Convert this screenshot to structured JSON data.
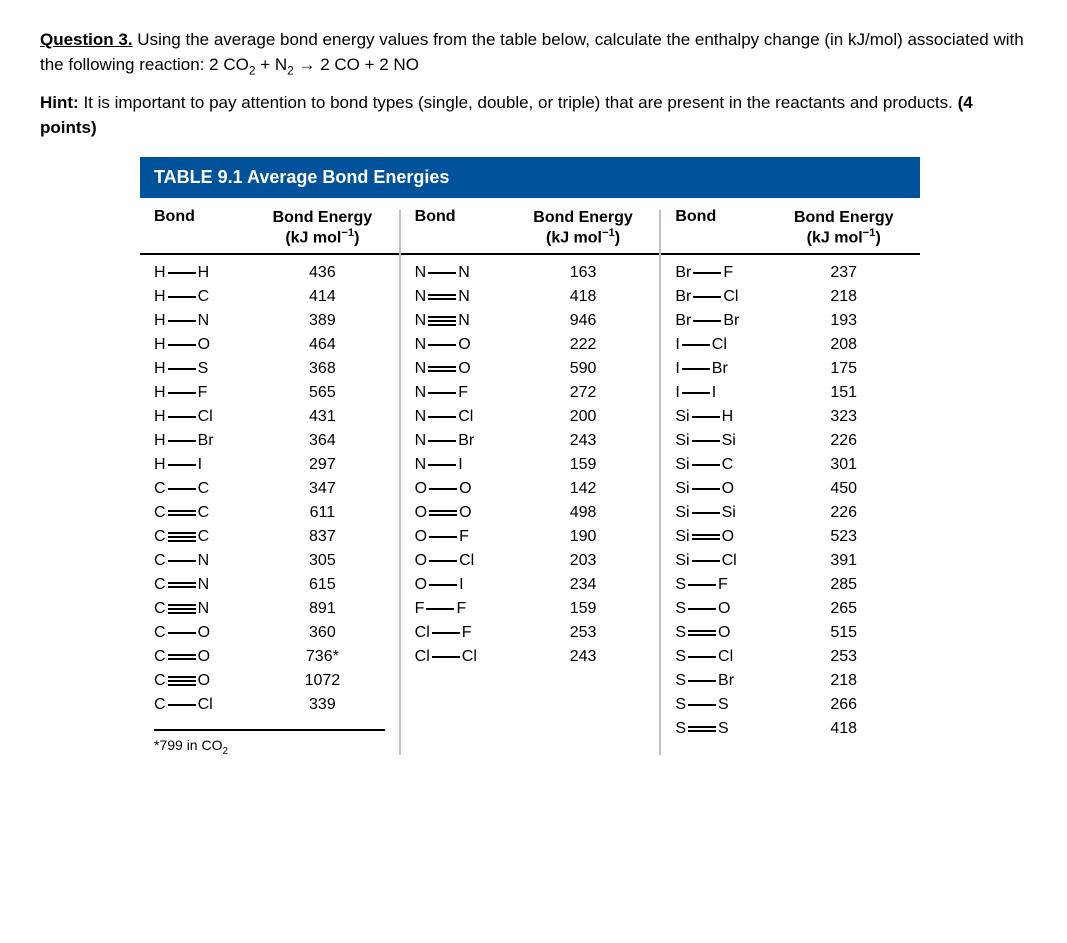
{
  "question": {
    "label": "Question 3.",
    "text_a": " Using the average bond energy values from the table below, calculate the enthalpy change (in kJ/mol) associated with the following reaction:    2 CO",
    "sub1": "2",
    "text_b": " + N",
    "sub2": "2",
    "text_c": " → 2 CO + 2 NO"
  },
  "hint": {
    "label": "Hint:",
    "text": " It is important to pay attention to bond types (single, double, or triple) that are present in the reactants and products. ",
    "points": "(4 points)"
  },
  "table": {
    "title_num": "TABLE 9.1",
    "title_name": "  Average Bond Energies",
    "header_bond": "Bond",
    "header_energy_l1": "Bond Energy",
    "header_energy_l2a": "(kJ mol",
    "header_energy_exp": "−1",
    "header_energy_l2b": ")",
    "col1": [
      {
        "a": "H",
        "t": "s",
        "b": "H",
        "v": "436"
      },
      {
        "a": "H",
        "t": "s",
        "b": "C",
        "v": "414"
      },
      {
        "a": "H",
        "t": "s",
        "b": "N",
        "v": "389"
      },
      {
        "a": "H",
        "t": "s",
        "b": "O",
        "v": "464"
      },
      {
        "a": "H",
        "t": "s",
        "b": "S",
        "v": "368"
      },
      {
        "a": "H",
        "t": "s",
        "b": "F",
        "v": "565"
      },
      {
        "a": "H",
        "t": "s",
        "b": "Cl",
        "v": "431"
      },
      {
        "a": "H",
        "t": "s",
        "b": "Br",
        "v": "364"
      },
      {
        "a": "H",
        "t": "s",
        "b": "I",
        "v": "297"
      },
      {
        "a": "C",
        "t": "s",
        "b": "C",
        "v": "347"
      },
      {
        "a": "C",
        "t": "d",
        "b": "C",
        "v": "611"
      },
      {
        "a": "C",
        "t": "t",
        "b": "C",
        "v": "837"
      },
      {
        "a": "C",
        "t": "s",
        "b": "N",
        "v": "305"
      },
      {
        "a": "C",
        "t": "d",
        "b": "N",
        "v": "615"
      },
      {
        "a": "C",
        "t": "t",
        "b": "N",
        "v": "891"
      },
      {
        "a": "C",
        "t": "s",
        "b": "O",
        "v": "360"
      },
      {
        "a": "C",
        "t": "d",
        "b": "O",
        "v": "736*"
      },
      {
        "a": "C",
        "t": "t",
        "b": "O",
        "v": "1072"
      },
      {
        "a": "C",
        "t": "s",
        "b": "Cl",
        "v": "339"
      }
    ],
    "col2": [
      {
        "a": "N",
        "t": "s",
        "b": "N",
        "v": "163"
      },
      {
        "a": "N",
        "t": "d",
        "b": "N",
        "v": "418"
      },
      {
        "a": "N",
        "t": "t",
        "b": "N",
        "v": "946"
      },
      {
        "a": "N",
        "t": "s",
        "b": "O",
        "v": "222"
      },
      {
        "a": "N",
        "t": "d",
        "b": "O",
        "v": "590"
      },
      {
        "a": "N",
        "t": "s",
        "b": "F",
        "v": "272"
      },
      {
        "a": "N",
        "t": "s",
        "b": "Cl",
        "v": "200"
      },
      {
        "a": "N",
        "t": "s",
        "b": "Br",
        "v": "243"
      },
      {
        "a": "N",
        "t": "s",
        "b": "I",
        "v": "159"
      },
      {
        "a": "O",
        "t": "s",
        "b": "O",
        "v": "142"
      },
      {
        "a": "O",
        "t": "d",
        "b": "O",
        "v": "498"
      },
      {
        "a": "O",
        "t": "s",
        "b": "F",
        "v": "190"
      },
      {
        "a": "O",
        "t": "s",
        "b": "Cl",
        "v": "203"
      },
      {
        "a": "O",
        "t": "s",
        "b": "I",
        "v": "234"
      },
      {
        "a": "F",
        "t": "s",
        "b": "F",
        "v": "159"
      },
      {
        "a": "Cl",
        "t": "s",
        "b": "F",
        "v": "253"
      },
      {
        "a": "Cl",
        "t": "s",
        "b": "Cl",
        "v": "243"
      }
    ],
    "col3": [
      {
        "a": "Br",
        "t": "s",
        "b": "F",
        "v": "237"
      },
      {
        "a": "Br",
        "t": "s",
        "b": "Cl",
        "v": "218"
      },
      {
        "a": "Br",
        "t": "s",
        "b": "Br",
        "v": "193"
      },
      {
        "a": "I",
        "t": "s",
        "b": "Cl",
        "v": "208"
      },
      {
        "a": "I",
        "t": "s",
        "b": "Br",
        "v": "175"
      },
      {
        "a": "I",
        "t": "s",
        "b": "I",
        "v": "151"
      },
      {
        "a": "Si",
        "t": "s",
        "b": "H",
        "v": "323"
      },
      {
        "a": "Si",
        "t": "s",
        "b": "Si",
        "v": "226"
      },
      {
        "a": "Si",
        "t": "s",
        "b": "C",
        "v": "301"
      },
      {
        "a": "Si",
        "t": "s",
        "b": "O",
        "v": "450"
      },
      {
        "a": "Si",
        "t": "s",
        "b": "Si",
        "v": "226"
      },
      {
        "a": "Si",
        "t": "d",
        "b": "O",
        "v": "523"
      },
      {
        "a": "Si",
        "t": "s",
        "b": "Cl",
        "v": "391"
      },
      {
        "a": "S",
        "t": "s",
        "b": "F",
        "v": "285"
      },
      {
        "a": "S",
        "t": "s",
        "b": "O",
        "v": "265"
      },
      {
        "a": "S",
        "t": "d",
        "b": "O",
        "v": "515"
      },
      {
        "a": "S",
        "t": "s",
        "b": "Cl",
        "v": "253"
      },
      {
        "a": "S",
        "t": "s",
        "b": "Br",
        "v": "218"
      },
      {
        "a": "S",
        "t": "s",
        "b": "S",
        "v": "266"
      },
      {
        "a": "S",
        "t": "d",
        "b": "S",
        "v": "418"
      }
    ],
    "footnote_a": "*799 in CO",
    "footnote_sub": "2"
  },
  "colors": {
    "title_bg": "#00539b",
    "title_fg": "#ffffff",
    "divider": "#b9c4ca",
    "text": "#000000",
    "bg": "#ffffff"
  }
}
